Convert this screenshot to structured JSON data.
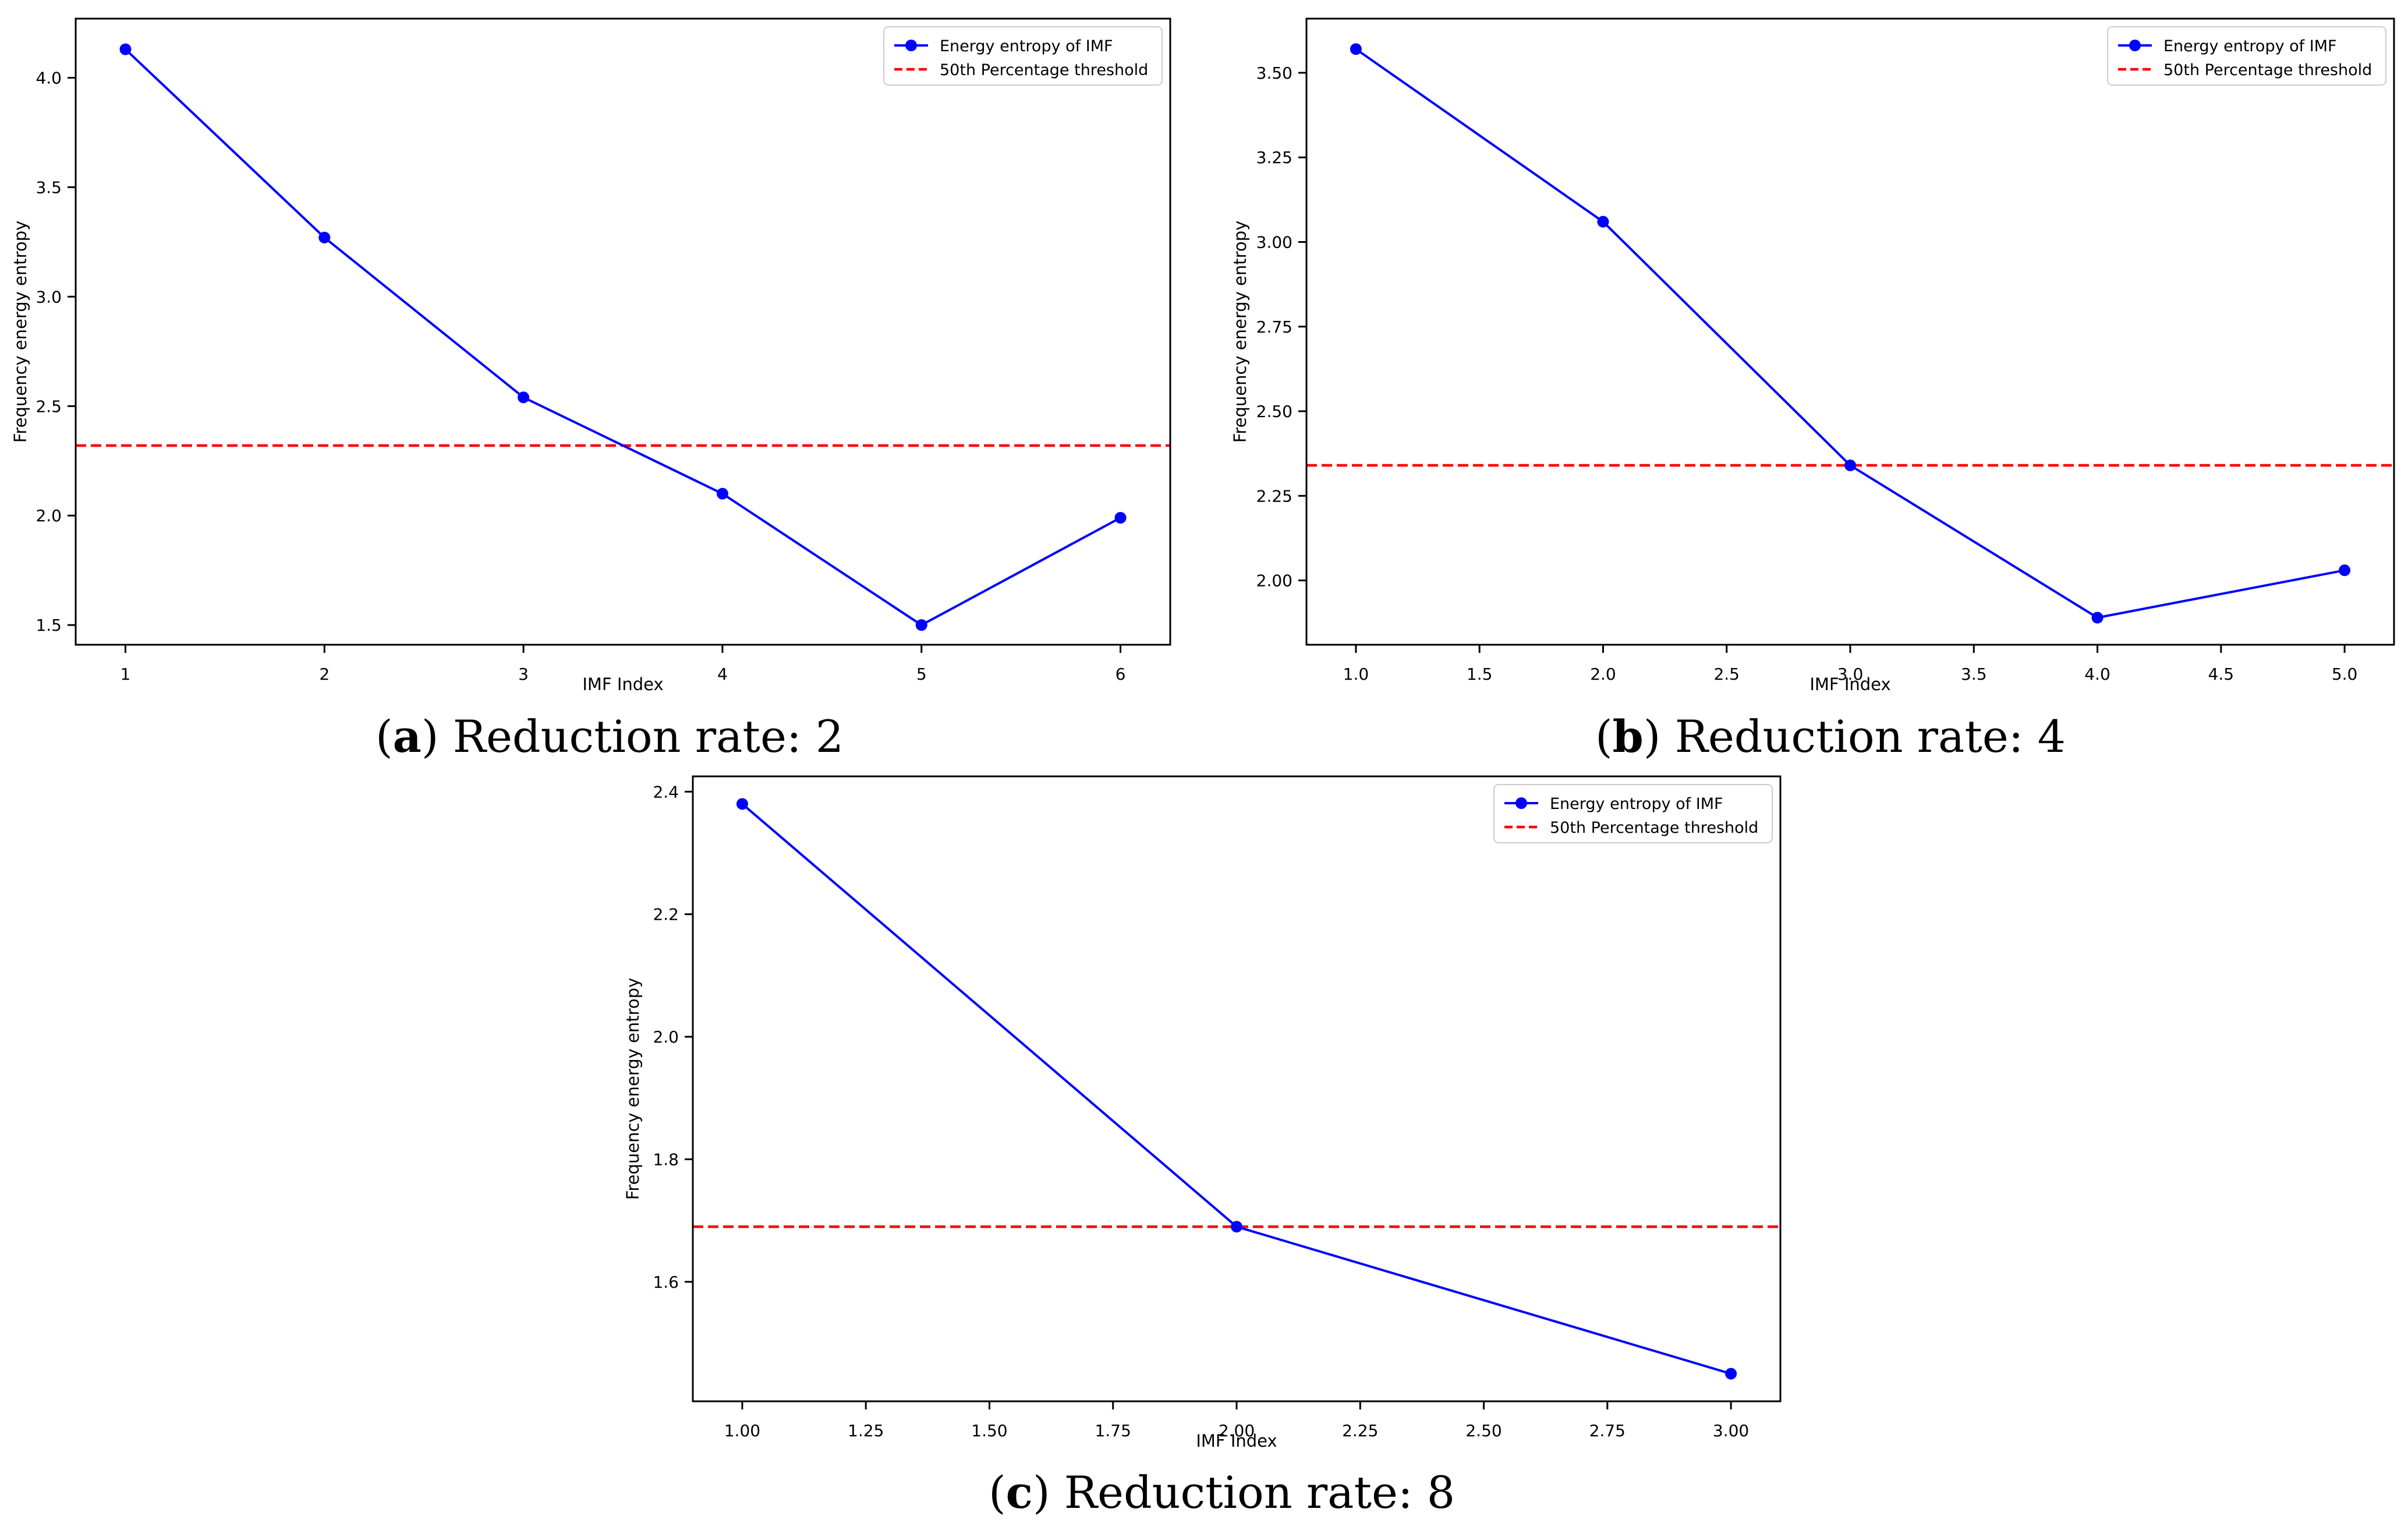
{
  "chart_data": [
    {
      "type": "line",
      "panel_letter": "a",
      "caption": "Reduction rate: 2",
      "title": "",
      "xlabel": "IMF Index",
      "ylabel": "Frequency energy entropy",
      "xlim": [
        0.75,
        6.25
      ],
      "ylim": [
        1.41,
        4.27
      ],
      "xticks": [
        1,
        2,
        3,
        4,
        5,
        6
      ],
      "xtick_labels": [
        "1",
        "2",
        "3",
        "4",
        "5",
        "6"
      ],
      "yticks": [
        1.5,
        2.0,
        2.5,
        3.0,
        3.5,
        4.0
      ],
      "ytick_labels": [
        "1.5",
        "2.0",
        "2.5",
        "3.0",
        "3.5",
        "4.0"
      ],
      "series": [
        {
          "name": "Energy entropy of IMF",
          "color": "#0000ff",
          "x": [
            1,
            2,
            3,
            4,
            5,
            6
          ],
          "values": [
            4.13,
            3.27,
            2.54,
            2.1,
            1.5,
            1.99
          ]
        }
      ],
      "threshold": {
        "name": "50th Percentage threshold",
        "color": "#ff0000",
        "value": 2.32
      },
      "legend": "top-right"
    },
    {
      "type": "line",
      "panel_letter": "b",
      "caption": "Reduction rate: 4",
      "title": "",
      "xlabel": "IMF Index",
      "ylabel": "Frequency energy entropy",
      "xlim": [
        0.8,
        5.2
      ],
      "ylim": [
        1.81,
        3.66
      ],
      "xticks": [
        1.0,
        1.5,
        2.0,
        2.5,
        3.0,
        3.5,
        4.0,
        4.5,
        5.0
      ],
      "xtick_labels": [
        "1.0",
        "1.5",
        "2.0",
        "2.5",
        "3.0",
        "3.5",
        "4.0",
        "4.5",
        "5.0"
      ],
      "yticks": [
        2.0,
        2.25,
        2.5,
        2.75,
        3.0,
        3.25,
        3.5
      ],
      "ytick_labels": [
        "2.00",
        "2.25",
        "2.50",
        "2.75",
        "3.00",
        "3.25",
        "3.50"
      ],
      "series": [
        {
          "name": "Energy entropy of IMF",
          "color": "#0000ff",
          "x": [
            1,
            2,
            3,
            4,
            5
          ],
          "values": [
            3.57,
            3.06,
            2.34,
            1.89,
            2.03
          ]
        }
      ],
      "threshold": {
        "name": "50th Percentage threshold",
        "color": "#ff0000",
        "value": 2.34
      },
      "legend": "top-right"
    },
    {
      "type": "line",
      "panel_letter": "c",
      "caption": "Reduction rate: 8",
      "title": "",
      "xlabel": "IMF Index",
      "ylabel": "Frequency energy entropy",
      "xlim": [
        0.9,
        3.1
      ],
      "ylim": [
        1.405,
        2.425
      ],
      "xticks": [
        1.0,
        1.25,
        1.5,
        1.75,
        2.0,
        2.25,
        2.5,
        2.75,
        3.0
      ],
      "xtick_labels": [
        "1.00",
        "1.25",
        "1.50",
        "1.75",
        "2.00",
        "2.25",
        "2.50",
        "2.75",
        "3.00"
      ],
      "yticks": [
        1.6,
        1.8,
        2.0,
        2.2,
        2.4
      ],
      "ytick_labels": [
        "1.6",
        "1.8",
        "2.0",
        "2.2",
        "2.4"
      ],
      "series": [
        {
          "name": "Energy entropy of IMF",
          "color": "#0000ff",
          "x": [
            1,
            2,
            3
          ],
          "values": [
            2.38,
            1.69,
            1.45
          ]
        }
      ],
      "threshold": {
        "name": "50th Percentage threshold",
        "color": "#ff0000",
        "value": 1.69
      },
      "legend": "top-right"
    }
  ]
}
